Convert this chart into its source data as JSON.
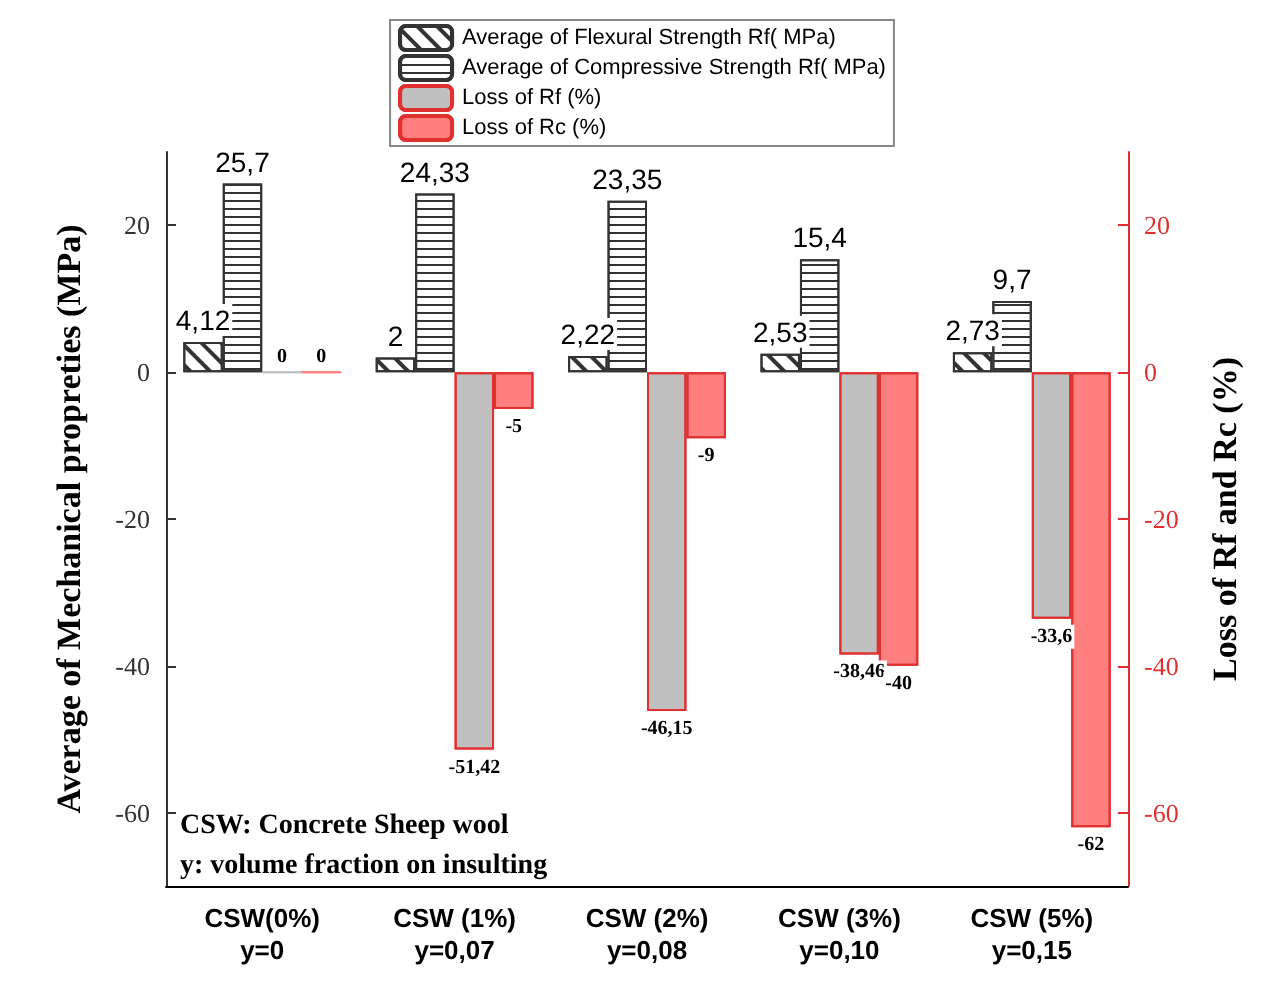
{
  "chart_data": {
    "type": "bar",
    "categories": [
      "CSW(0%)\ny=0",
      "CSW (1%)\ny=0,07",
      "CSW (2%)\ny=0,08",
      "CSW (3%)\ny=0,10",
      "CSW (5%)\ny=0,15"
    ],
    "ylabel": "Average of Mechanical propreties (MPa)",
    "y2label": "Loss of Rf and Rc (%)",
    "ylim": [
      -70,
      30
    ],
    "yticks": [
      -60,
      -40,
      -20,
      0,
      20
    ],
    "y2lim": [
      -70,
      30
    ],
    "y2ticks": [
      -60,
      -40,
      -20,
      0,
      20
    ],
    "series": [
      {
        "name": "Average of Flexural Strength Rf( MPa)",
        "color": "#ffffff",
        "values": [
          4.12,
          2,
          2.22,
          2.53,
          2.73
        ],
        "value_labels": [
          "4,12",
          "2",
          "2,22",
          "2,53",
          "2,73"
        ]
      },
      {
        "name": "Average of Compressive Strength Rf( MPa)",
        "color": "#ffffff",
        "values": [
          25.7,
          24.33,
          23.35,
          15.4,
          9.7
        ],
        "value_labels": [
          "25,7",
          "24,33",
          "23,35",
          "15,4",
          "9,7"
        ]
      },
      {
        "name": "Loss of Rf (%)",
        "color": "#c0c0c0",
        "axis": "y2",
        "values": [
          0,
          -51.42,
          -46.15,
          -38.46,
          -33.6
        ],
        "value_labels": [
          "0",
          "-51,42",
          "-46,15",
          "-38,46",
          "-33,6"
        ]
      },
      {
        "name": "Loss of Rc (%)",
        "color": "#ff7f7f",
        "axis": "y2",
        "values": [
          0,
          -5,
          -9,
          -40,
          -62
        ],
        "value_labels": [
          "0",
          "-5",
          "-9",
          "-40",
          "-62"
        ]
      }
    ],
    "annotations": [
      "CSW: Concrete Sheep wool",
      "y: volume fraction on insulting"
    ],
    "legend": "top",
    "grid": false
  }
}
